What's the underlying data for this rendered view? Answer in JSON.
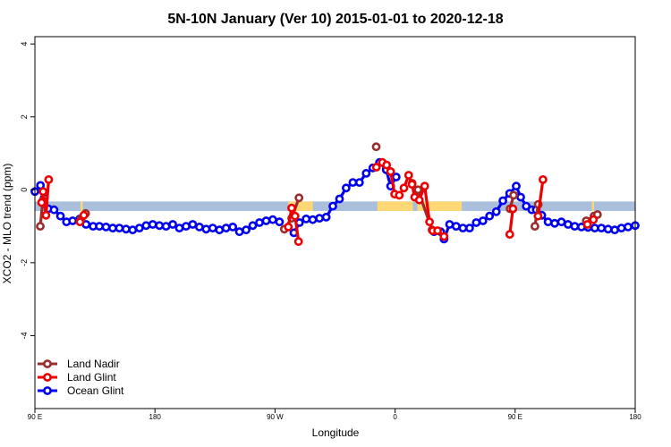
{
  "chart_data": {
    "type": "line",
    "title": "5N-10N January (Ver 10)   2015-01-01 to 2020-12-18",
    "xlabel": "Longitude",
    "ylabel": "XCO2 - MLO trend (ppm)",
    "xlim": [
      -90,
      180
    ],
    "ylim": [
      -6,
      4.2
    ],
    "x_ticks": [
      {
        "value": -90,
        "label": "90 E"
      },
      {
        "value": -36,
        "label": "180"
      },
      {
        "value": 18,
        "label": "90 W"
      },
      {
        "value": 72,
        "label": "0"
      },
      {
        "value": 126,
        "label": "90 E"
      },
      {
        "value": 180,
        "label": "180"
      }
    ],
    "y_ticks": [
      {
        "value": 4,
        "label": "4"
      },
      {
        "value": 2,
        "label": "2"
      },
      {
        "value": 0,
        "label": "0"
      },
      {
        "value": -2,
        "label": "-2"
      },
      {
        "value": -4,
        "label": "-4"
      }
    ],
    "legend_position": "bottom-left",
    "land_band": {
      "y_top": -0.32,
      "y_bottom": -0.58,
      "ocean_color": "#a9bfdc",
      "land_color": "#fdd874",
      "land_segments": [
        [
          -69.5,
          -68.5
        ],
        [
          24,
          35
        ],
        [
          64,
          80
        ],
        [
          82,
          102
        ],
        [
          160.5,
          161.5
        ]
      ]
    },
    "series": [
      {
        "name": "Land Nadir",
        "color": "#9b2d2d",
        "segments": [
          {
            "x": [
              -87.6,
              -86.4
            ],
            "y": [
              -1.0,
              -0.3
            ]
          },
          {
            "x": [
              -69.2,
              -67.2
            ],
            "y": [
              -0.8,
              -0.65
            ]
          },
          {
            "x": [
              22.2,
              25.5,
              28.8
            ],
            "y": [
              -1.08,
              -0.78,
              -0.22
            ]
          },
          {
            "x": [
              63.5
            ],
            "y": [
              1.18
            ]
          },
          {
            "x": [
              79.7,
              82.3,
              88.6
            ],
            "y": [
              0.18,
              0.0,
              -1.1
            ]
          },
          {
            "x": [
              123.7,
              125.3
            ],
            "y": [
              -0.52,
              -0.15
            ]
          },
          {
            "x": [
              134.9,
              136.4
            ],
            "y": [
              -1.0,
              -0.4
            ]
          },
          {
            "x": [
              158.0,
              161.5,
              163.0
            ],
            "y": [
              -0.85,
              -0.72,
              -0.68
            ]
          }
        ]
      },
      {
        "name": "Land Glint",
        "color": "#ee0000",
        "segments": [
          {
            "x": [
              -87.0,
              -86.3,
              -85.0,
              -83.8
            ],
            "y": [
              -0.35,
              -0.05,
              -0.7,
              0.28
            ]
          },
          {
            "x": [
              -69.7,
              -68.0
            ],
            "y": [
              -0.88,
              -0.7
            ]
          },
          {
            "x": [
              24.0,
              25.5,
              27.0,
              28.6
            ],
            "y": [
              -1.02,
              -0.5,
              -0.72,
              -1.42
            ]
          },
          {
            "x": [
              63.6,
              66.3,
              68.2,
              70.0,
              71.8,
              73.9,
              76.0,
              78.1,
              79.6,
              80.8,
              82.9,
              85.3,
              87.5,
              89.0,
              91.1,
              94.0
            ],
            "y": [
              0.62,
              0.75,
              0.68,
              0.5,
              -0.12,
              -0.15,
              0.05,
              0.4,
              0.15,
              -0.2,
              -0.28,
              0.1,
              -0.88,
              -1.12,
              -1.12,
              -1.28
            ]
          },
          {
            "x": [
              123.6,
              125.0
            ],
            "y": [
              -1.22,
              -0.52
            ]
          },
          {
            "x": [
              136.3,
              138.5
            ],
            "y": [
              -0.72,
              0.28
            ]
          },
          {
            "x": [
              158.5,
              161.2
            ],
            "y": [
              -0.95,
              -0.82
            ]
          }
        ]
      },
      {
        "name": "Ocean Glint",
        "color": "#0000ee",
        "segments": [
          {
            "x": [
              -90.0,
              -87.5,
              -85.8,
              -84.0,
              -81.4,
              -78.5,
              -75.8,
              -73.0,
              -69.8,
              -67.0,
              -63.8,
              -61.0,
              -58.0,
              -55.0,
              -52.0,
              -49.0,
              -46.0,
              -43.0,
              -40.0,
              -37.0,
              -34.0,
              -31.0,
              -28.0,
              -25.0,
              -22.0,
              -19.0,
              -16.0,
              -13.0,
              -10.0,
              -7.0,
              -4.0,
              -1.0,
              2.0,
              5.0,
              8.0,
              11.0,
              14.0,
              17.0,
              20.0
            ],
            "y": [
              -0.05,
              0.12,
              -0.22,
              -0.52,
              -0.55,
              -0.72,
              -0.88,
              -0.85,
              -0.8,
              -0.95,
              -1.0,
              -1.0,
              -1.02,
              -1.05,
              -1.05,
              -1.08,
              -1.1,
              -1.05,
              -0.98,
              -0.95,
              -0.98,
              -1.0,
              -0.95,
              -1.05,
              -1.0,
              -0.95,
              -1.02,
              -1.08,
              -1.05,
              -1.1,
              -1.05,
              -1.02,
              -1.15,
              -1.1,
              -0.98,
              -0.9,
              -0.85,
              -0.82,
              -0.88
            ]
          },
          {
            "x": [
              26.5,
              29.0,
              32.0,
              35.0,
              38.0,
              41.0,
              44.0,
              47.0,
              50.0,
              53.0,
              56.0,
              59.0,
              62.0,
              65.0,
              68.0,
              70.0,
              72.5
            ],
            "y": [
              -1.18,
              -0.9,
              -0.8,
              -0.82,
              -0.78,
              -0.75,
              -0.45,
              -0.25,
              0.05,
              0.2,
              0.2,
              0.45,
              0.6,
              0.75,
              0.55,
              0.1,
              0.35
            ]
          },
          {
            "x": [
              89.5,
              92.5,
              94.0,
              96.5,
              99.5,
              102.5,
              105.5,
              108.5,
              111.5,
              114.5,
              117.5,
              120.5,
              123.5,
              126.5,
              128.5,
              131.0,
              133.5,
              135.5,
              138.0,
              140.8,
              143.8,
              146.8,
              149.8,
              152.8,
              155.8,
              158.8,
              161.8,
              164.8,
              167.8,
              170.8,
              173.8,
              176.8,
              180.0
            ],
            "y": [
              -1.15,
              -1.15,
              -1.35,
              -0.95,
              -1.0,
              -1.05,
              -1.05,
              -0.9,
              -0.85,
              -0.72,
              -0.6,
              -0.3,
              -0.1,
              0.1,
              -0.2,
              -0.45,
              -0.55,
              -0.55,
              -0.7,
              -0.88,
              -0.92,
              -0.88,
              -0.95,
              -1.0,
              -1.02,
              -1.03,
              -1.05,
              -1.05,
              -1.08,
              -1.1,
              -1.05,
              -1.02,
              -0.98
            ]
          }
        ]
      }
    ]
  }
}
